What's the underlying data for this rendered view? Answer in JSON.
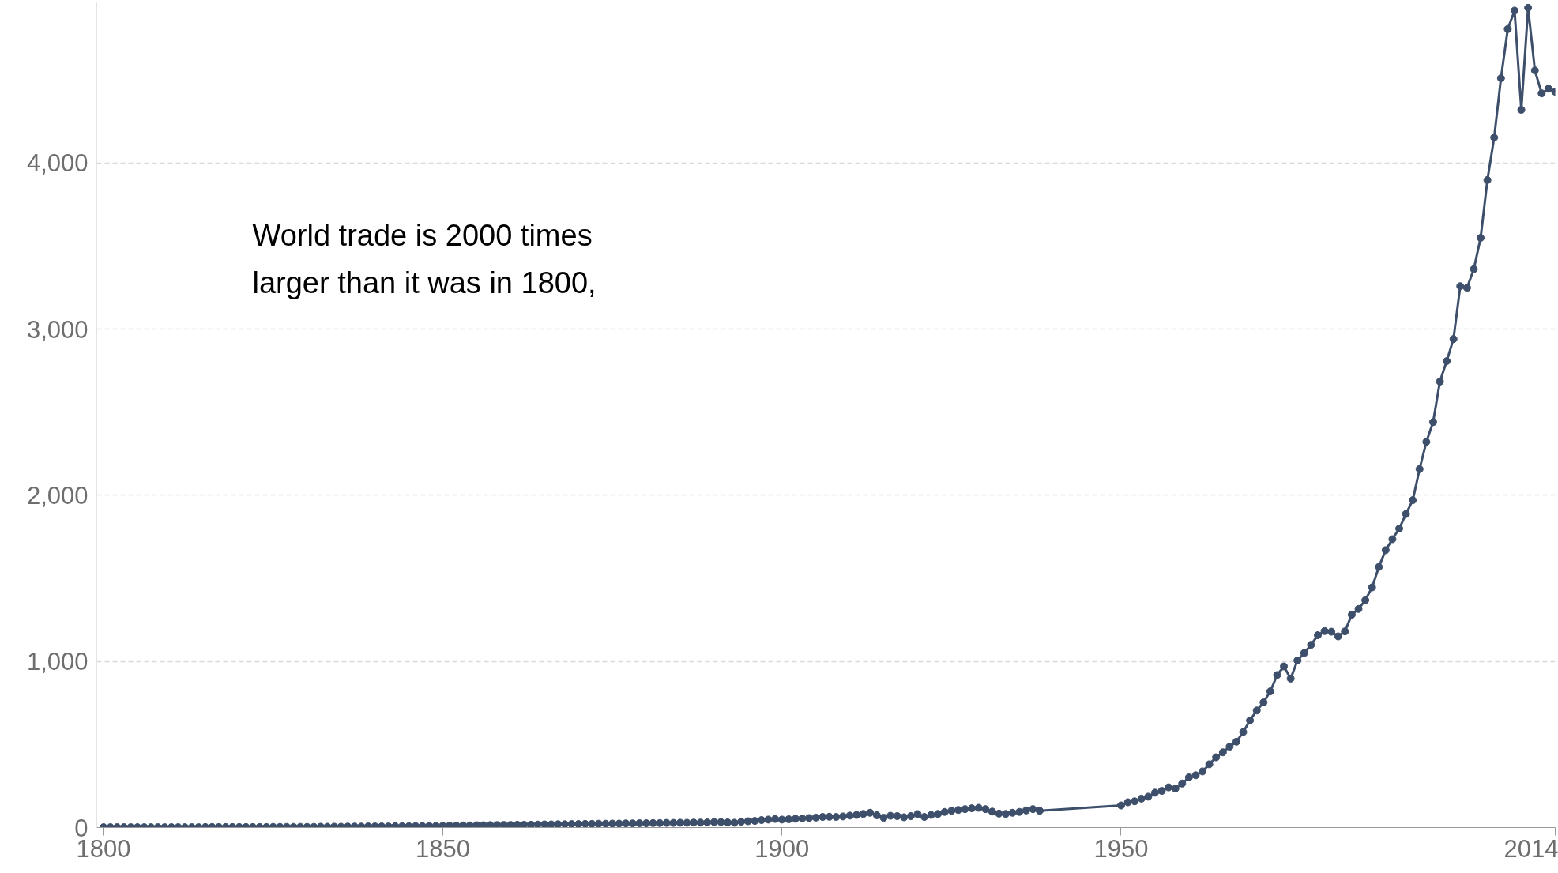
{
  "chart_data": {
    "type": "line",
    "x": [
      1800,
      1801,
      1802,
      1803,
      1804,
      1805,
      1806,
      1807,
      1808,
      1809,
      1810,
      1811,
      1812,
      1813,
      1814,
      1815,
      1816,
      1817,
      1818,
      1819,
      1820,
      1821,
      1822,
      1823,
      1824,
      1825,
      1826,
      1827,
      1828,
      1829,
      1830,
      1831,
      1832,
      1833,
      1834,
      1835,
      1836,
      1837,
      1838,
      1839,
      1840,
      1841,
      1842,
      1843,
      1844,
      1845,
      1846,
      1847,
      1848,
      1849,
      1850,
      1851,
      1852,
      1853,
      1854,
      1855,
      1856,
      1857,
      1858,
      1859,
      1860,
      1861,
      1862,
      1863,
      1864,
      1865,
      1866,
      1867,
      1868,
      1869,
      1870,
      1871,
      1872,
      1873,
      1874,
      1875,
      1876,
      1877,
      1878,
      1879,
      1880,
      1881,
      1882,
      1883,
      1884,
      1885,
      1886,
      1887,
      1888,
      1889,
      1890,
      1891,
      1892,
      1893,
      1894,
      1895,
      1896,
      1897,
      1898,
      1899,
      1900,
      1901,
      1902,
      1903,
      1904,
      1905,
      1906,
      1907,
      1908,
      1909,
      1910,
      1911,
      1912,
      1913,
      1914,
      1915,
      1916,
      1917,
      1918,
      1919,
      1920,
      1921,
      1922,
      1923,
      1924,
      1925,
      1926,
      1927,
      1928,
      1929,
      1930,
      1931,
      1932,
      1933,
      1934,
      1935,
      1936,
      1937,
      1938,
      1950,
      1951,
      1952,
      1953,
      1954,
      1955,
      1956,
      1957,
      1958,
      1959,
      1960,
      1961,
      1962,
      1963,
      1964,
      1965,
      1966,
      1967,
      1968,
      1969,
      1970,
      1971,
      1972,
      1973,
      1974,
      1975,
      1976,
      1977,
      1978,
      1979,
      1980,
      1981,
      1982,
      1983,
      1984,
      1985,
      1986,
      1987,
      1988,
      1989,
      1990,
      1991,
      1992,
      1993,
      1994,
      1995,
      1996,
      1997,
      1998,
      1999,
      2000,
      2001,
      2002,
      2003,
      2004,
      2005,
      2006,
      2007,
      2008,
      2009,
      2010,
      2011,
      2012,
      2013,
      2014
    ],
    "series": [
      {
        "color": "#3d4f6a",
        "values": [
          2,
          2,
          2,
          2,
          2,
          2,
          2,
          2,
          2,
          2,
          2,
          2,
          2,
          2,
          2,
          3,
          3,
          3,
          3,
          3,
          3,
          3,
          3,
          3,
          3,
          4,
          4,
          4,
          4,
          4,
          4,
          4,
          5,
          5,
          5,
          5,
          6,
          6,
          6,
          7,
          7,
          7,
          7,
          8,
          8,
          8,
          9,
          9,
          10,
          10,
          11,
          12,
          12,
          13,
          13,
          14,
          14,
          15,
          15,
          16,
          16,
          17,
          17,
          17,
          18,
          19,
          19,
          20,
          20,
          21,
          21,
          22,
          22,
          23,
          23,
          24,
          24,
          25,
          25,
          26,
          26,
          27,
          27,
          28,
          28,
          29,
          29,
          30,
          30,
          31,
          33,
          33,
          31,
          29,
          35,
          38,
          40,
          45,
          48,
          52,
          48,
          50,
          53,
          55,
          57,
          60,
          64,
          65,
          64,
          67,
          72,
          76,
          82,
          89,
          74,
          59,
          71,
          69,
          62,
          69,
          81,
          64,
          76,
          82,
          94,
          101,
          106,
          111,
          116,
          119,
          111,
          96,
          84,
          82,
          89,
          94,
          103,
          111,
          101,
          133,
          152,
          158,
          174,
          186,
          210,
          221,
          242,
          235,
          265,
          302,
          315,
          338,
          381,
          423,
          453,
          487,
          517,
          575,
          645,
          705,
          754,
          820,
          918,
          970,
          897,
          1006,
          1051,
          1100,
          1158,
          1183,
          1179,
          1151,
          1181,
          1281,
          1316,
          1369,
          1446,
          1569,
          1670,
          1736,
          1800,
          1888,
          1971,
          2158,
          2322,
          2441,
          2685,
          2808,
          2941,
          3259,
          3249,
          3362,
          3550,
          3898,
          4154,
          4511,
          4807,
          4918,
          4321,
          4935,
          4558,
          4420,
          4448,
          4430
        ]
      }
    ],
    "xlim": [
      1799,
      2014
    ],
    "xticks": [
      1800,
      1850,
      1900,
      1950,
      2014
    ],
    "ylim": [
      0,
      4970
    ],
    "yticks": [
      {
        "value": 0,
        "label": "0"
      },
      {
        "value": 1000,
        "label": "1,000"
      },
      {
        "value": 2000,
        "label": "2,000"
      },
      {
        "value": 3000,
        "label": "3,000"
      },
      {
        "value": 4000,
        "label": "4,000"
      }
    ],
    "grid": "y",
    "marker": "circle",
    "line_style": "solid",
    "annotations": [
      "World trade is 2000 times\nlarger than it was in 1800,"
    ]
  }
}
